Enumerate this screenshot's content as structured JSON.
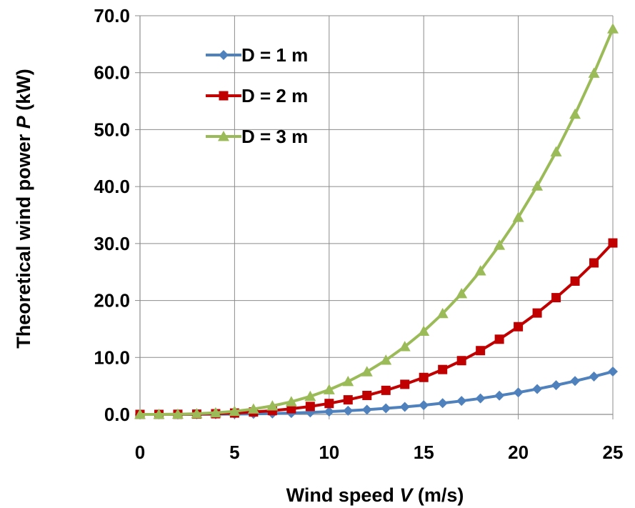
{
  "chart_data": {
    "type": "line",
    "xlabel_parts": [
      "Wind speed ",
      "V",
      " (m/s)"
    ],
    "ylabel_parts": [
      "Theoretical wind power ",
      "P",
      " (kW)"
    ],
    "xlim": [
      0,
      25
    ],
    "ylim": [
      0,
      70
    ],
    "x_ticks": [
      "0",
      "5",
      "10",
      "15",
      "20",
      "25"
    ],
    "y_ticks": [
      "0.0",
      "10.0",
      "20.0",
      "30.0",
      "40.0",
      "50.0",
      "60.0",
      "70.0"
    ],
    "grid": true,
    "legend_position": "top-left",
    "x": [
      0,
      1,
      2,
      3,
      4,
      5,
      6,
      7,
      8,
      9,
      10,
      11,
      12,
      13,
      14,
      15,
      16,
      17,
      18,
      19,
      20,
      21,
      22,
      23,
      24,
      25
    ],
    "series": [
      {
        "name": "D = 1 m",
        "color": "#4F81BD",
        "marker": "diamond",
        "values": [
          0.0,
          0.0,
          0.0,
          0.01,
          0.03,
          0.06,
          0.1,
          0.16,
          0.24,
          0.35,
          0.48,
          0.64,
          0.83,
          1.06,
          1.32,
          1.62,
          1.97,
          2.36,
          2.8,
          3.3,
          3.85,
          4.46,
          5.13,
          5.86,
          6.65,
          7.52
        ]
      },
      {
        "name": "D = 2 m",
        "color": "#C00000",
        "marker": "square",
        "values": [
          0.0,
          0.0,
          0.02,
          0.05,
          0.12,
          0.24,
          0.42,
          0.66,
          0.99,
          1.4,
          1.92,
          2.56,
          3.33,
          4.22,
          5.28,
          6.49,
          7.88,
          9.44,
          11.2,
          13.2,
          15.4,
          17.8,
          20.5,
          23.4,
          26.6,
          30.1
        ]
      },
      {
        "name": "D = 3 m",
        "color": "#9BBB59",
        "marker": "triangle",
        "values": [
          0.0,
          0.0,
          0.03,
          0.12,
          0.28,
          0.54,
          0.94,
          1.49,
          2.22,
          3.16,
          4.33,
          5.77,
          7.49,
          9.52,
          11.9,
          14.6,
          17.7,
          21.2,
          25.2,
          29.7,
          34.6,
          40.1,
          46.1,
          52.7,
          59.9,
          67.7
        ]
      }
    ]
  }
}
